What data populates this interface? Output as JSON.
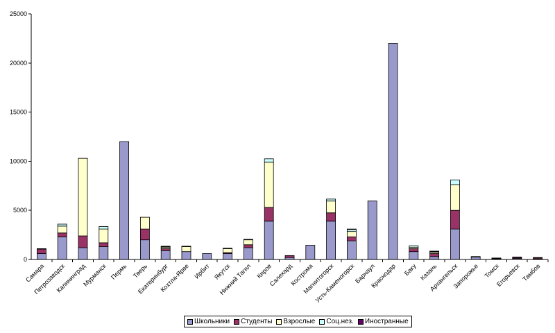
{
  "chart_data": {
    "type": "bar",
    "stacked": true,
    "title": "",
    "xlabel": "",
    "ylabel": "",
    "ylim": [
      0,
      25000
    ],
    "yticks": [
      0,
      5000,
      10000,
      15000,
      20000,
      25000
    ],
    "grid": false,
    "legend": "bottom",
    "categories": [
      "Самара",
      "Петрозаводск",
      "Калининград",
      "Мурманск",
      "Пермь",
      "Тверь",
      "Екатеринбург",
      "Кохтла-Ярве",
      "Ирбит",
      "Якутск",
      "Нижний Тагил",
      "Киров",
      "Салехард",
      "Кострома",
      "Магнитогорск",
      "Усть-Каменогорск",
      "Барнаул",
      "Краснодар",
      "Баку",
      "Казань",
      "Архангельск",
      "Запорожье",
      "Томск",
      "Егорьевск",
      "Тамбов"
    ],
    "series": [
      {
        "name": "Школьники",
        "color": "#9999cc",
        "values": [
          600,
          2300,
          1200,
          1300,
          12000,
          2000,
          900,
          800,
          600,
          600,
          1200,
          3900,
          200,
          1450,
          3900,
          1900,
          5950,
          22000,
          800,
          300,
          3100,
          250,
          50,
          100,
          50
        ]
      },
      {
        "name": "Студенты",
        "color": "#993366",
        "values": [
          450,
          400,
          1200,
          400,
          0,
          1100,
          200,
          0,
          0,
          100,
          300,
          1400,
          200,
          0,
          850,
          400,
          0,
          0,
          300,
          300,
          1900,
          0,
          50,
          100,
          100
        ]
      },
      {
        "name": "Взрослые",
        "color": "#ffffcc",
        "values": [
          0,
          700,
          7900,
          1400,
          0,
          1200,
          150,
          500,
          0,
          400,
          500,
          4600,
          0,
          0,
          1200,
          550,
          0,
          0,
          150,
          150,
          2600,
          0,
          0,
          0,
          0
        ]
      },
      {
        "name": "Соц.нез.",
        "color": "#ccffff",
        "values": [
          0,
          200,
          0,
          250,
          0,
          0,
          50,
          50,
          0,
          0,
          50,
          350,
          0,
          0,
          200,
          200,
          0,
          0,
          150,
          50,
          500,
          0,
          0,
          0,
          0
        ]
      },
      {
        "name": "Иностранные",
        "color": "#660066",
        "values": [
          50,
          0,
          0,
          0,
          0,
          0,
          50,
          0,
          0,
          50,
          0,
          0,
          0,
          0,
          0,
          50,
          0,
          0,
          0,
          50,
          0,
          50,
          50,
          50,
          50
        ]
      }
    ]
  }
}
